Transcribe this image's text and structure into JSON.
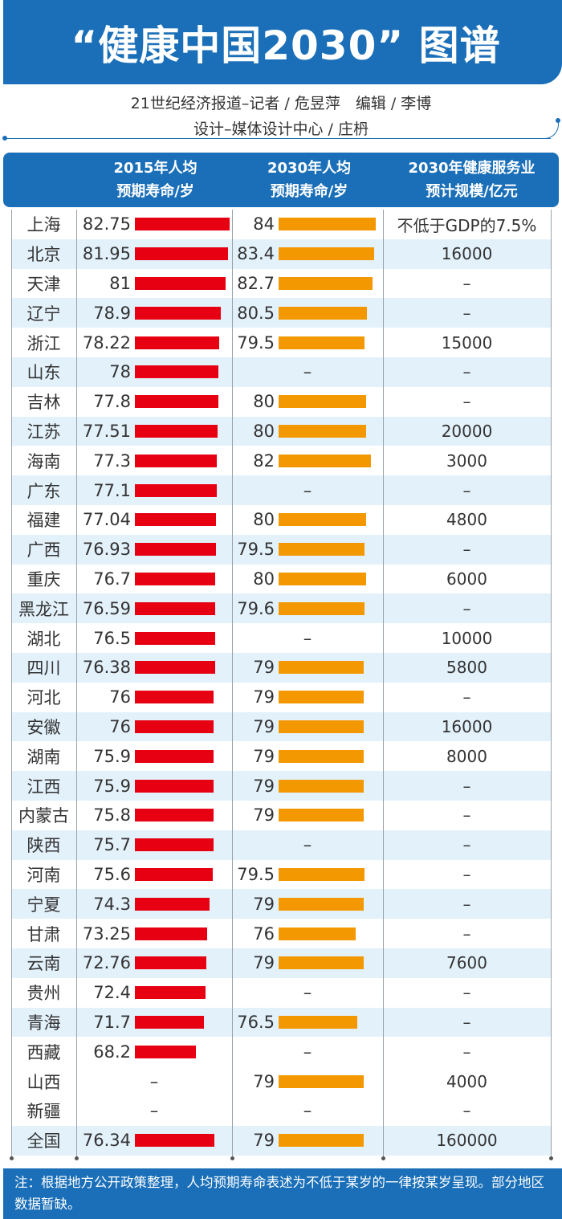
{
  "title": "“健康中国2030” 图谱",
  "byline": {
    "line1": "21世纪经济报道–记者 / 危昱萍　编辑 / 李博",
    "line2": "设计–媒体设计中心 / 庄枬"
  },
  "colors": {
    "banner_blue": "#1a6fb8",
    "bar_2015": "#e60012",
    "bar_2030": "#f39800",
    "row_tint": "#e3f1fb"
  },
  "header": {
    "col1_line1": "2015年人均",
    "col1_line2": "预期寿命/岁",
    "col2_line1": "2030年人均",
    "col2_line2": "预期寿命/岁",
    "col3_line1": "2030年健康服务业",
    "col3_line2": "预计规模/亿元"
  },
  "rows": [
    {
      "region": "上海",
      "le2015": "82.75",
      "le2030": "84",
      "scale": "不低于GDP的7.5%"
    },
    {
      "region": "北京",
      "le2015": "81.95",
      "le2030": "83.4",
      "scale": "16000"
    },
    {
      "region": "天津",
      "le2015": "81",
      "le2030": "82.7",
      "scale": "–"
    },
    {
      "region": "辽宁",
      "le2015": "78.9",
      "le2030": "80.5",
      "scale": "–"
    },
    {
      "region": "浙江",
      "le2015": "78.22",
      "le2030": "79.5",
      "scale": "15000"
    },
    {
      "region": "山东",
      "le2015": "78",
      "le2030": "–",
      "scale": "–"
    },
    {
      "region": "吉林",
      "le2015": "77.8",
      "le2030": "80",
      "scale": "–"
    },
    {
      "region": "江苏",
      "le2015": "77.51",
      "le2030": "80",
      "scale": "20000"
    },
    {
      "region": "海南",
      "le2015": "77.3",
      "le2030": "82",
      "scale": "3000"
    },
    {
      "region": "广东",
      "le2015": "77.1",
      "le2030": "–",
      "scale": "–"
    },
    {
      "region": "福建",
      "le2015": "77.04",
      "le2030": "80",
      "scale": "4800"
    },
    {
      "region": "广西",
      "le2015": "76.93",
      "le2030": "79.5",
      "scale": "–"
    },
    {
      "region": "重庆",
      "le2015": "76.7",
      "le2030": "80",
      "scale": "6000"
    },
    {
      "region": "黑龙江",
      "le2015": "76.59",
      "le2030": "79.6",
      "scale": "–"
    },
    {
      "region": "湖北",
      "le2015": "76.5",
      "le2030": "–",
      "scale": "10000"
    },
    {
      "region": "四川",
      "le2015": "76.38",
      "le2030": "79",
      "scale": "5800"
    },
    {
      "region": "河北",
      "le2015": "76",
      "le2030": "79",
      "scale": "–"
    },
    {
      "region": "安徽",
      "le2015": "76",
      "le2030": "79",
      "scale": "16000"
    },
    {
      "region": "湖南",
      "le2015": "75.9",
      "le2030": "79",
      "scale": "8000"
    },
    {
      "region": "江西",
      "le2015": "75.9",
      "le2030": "79",
      "scale": "–"
    },
    {
      "region": "内蒙古",
      "le2015": "75.8",
      "le2030": "79",
      "scale": "–"
    },
    {
      "region": "陕西",
      "le2015": "75.7",
      "le2030": "–",
      "scale": "–"
    },
    {
      "region": "河南",
      "le2015": "75.6",
      "le2030": "79.5",
      "scale": "–"
    },
    {
      "region": "宁夏",
      "le2015": "74.3",
      "le2030": "79",
      "scale": "–"
    },
    {
      "region": "甘肃",
      "le2015": "73.25",
      "le2030": "76",
      "scale": "–"
    },
    {
      "region": "云南",
      "le2015": "72.76",
      "le2030": "79",
      "scale": "7600"
    },
    {
      "region": "贵州",
      "le2015": "72.4",
      "le2030": "–",
      "scale": "–"
    },
    {
      "region": "青海",
      "le2015": "71.7",
      "le2030": "76.5",
      "scale": "–"
    },
    {
      "region": "西藏",
      "le2015": "68.2",
      "le2030": "–",
      "scale": "–"
    },
    {
      "region": "山西",
      "le2015": "–",
      "le2030": "79",
      "scale": "4000"
    },
    {
      "region": "新疆",
      "le2015": "–",
      "le2030": "–",
      "scale": "–"
    },
    {
      "region": "全国",
      "le2015": "76.34",
      "le2030": "79",
      "scale": "160000"
    }
  ],
  "footer_note": "注：根据地方公开政策整理，人均预期寿命表述为不低于某岁的一律按某岁呈现。部分地区数据暂缺。",
  "chart_data": {
    "type": "table",
    "title": "“健康中国2030” 图谱",
    "columns": [
      "地区",
      "2015年人均预期寿命/岁",
      "2030年人均预期寿命/岁",
      "2030年健康服务业预计规模/亿元"
    ],
    "categories": [
      "上海",
      "北京",
      "天津",
      "辽宁",
      "浙江",
      "山东",
      "吉林",
      "江苏",
      "海南",
      "广东",
      "福建",
      "广西",
      "重庆",
      "黑龙江",
      "湖北",
      "四川",
      "河北",
      "安徽",
      "湖南",
      "江西",
      "内蒙古",
      "陕西",
      "河南",
      "宁夏",
      "甘肃",
      "云南",
      "贵州",
      "青海",
      "西藏",
      "山西",
      "新疆",
      "全国"
    ],
    "series": [
      {
        "name": "2015年人均预期寿命/岁",
        "type": "bar",
        "color": "#e60012",
        "values": [
          82.75,
          81.95,
          81,
          78.9,
          78.22,
          78,
          77.8,
          77.51,
          77.3,
          77.1,
          77.04,
          76.93,
          76.7,
          76.59,
          76.5,
          76.38,
          76,
          76,
          75.9,
          75.9,
          75.8,
          75.7,
          75.6,
          74.3,
          73.25,
          72.76,
          72.4,
          71.7,
          68.2,
          null,
          null,
          76.34
        ]
      },
      {
        "name": "2030年人均预期寿命/岁",
        "type": "bar",
        "color": "#f39800",
        "values": [
          84,
          83.4,
          82.7,
          80.5,
          79.5,
          null,
          80,
          80,
          82,
          null,
          80,
          79.5,
          80,
          79.6,
          null,
          79,
          79,
          79,
          79,
          79,
          79,
          null,
          79.5,
          79,
          76,
          79,
          null,
          76.5,
          null,
          79,
          null,
          79
        ]
      },
      {
        "name": "2030年健康服务业预计规模/亿元",
        "type": "table",
        "values": [
          "不低于GDP的7.5%",
          16000,
          null,
          null,
          15000,
          null,
          null,
          20000,
          3000,
          null,
          4800,
          null,
          6000,
          null,
          10000,
          5800,
          null,
          16000,
          8000,
          null,
          null,
          null,
          null,
          null,
          null,
          7600,
          null,
          null,
          null,
          4000,
          null,
          160000
        ]
      }
    ],
    "note": "注：根据地方公开政策整理，人均预期寿命表述为不低于某岁的一律按某岁呈现。部分地区数据暂缺。"
  }
}
